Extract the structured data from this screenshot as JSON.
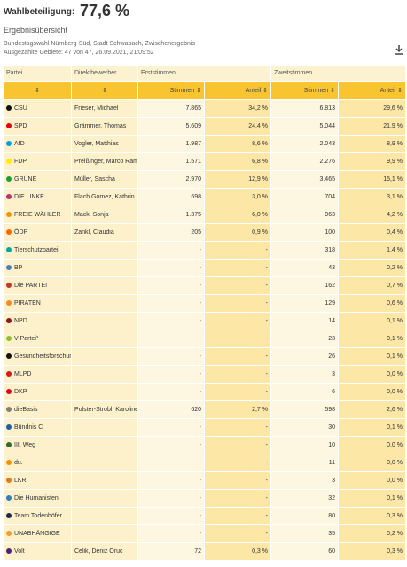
{
  "header": {
    "label": "Wahlbeteiligung:",
    "value": "77,6 %",
    "title": "Ergebnisübersicht",
    "info": [
      "Bundestagswahl Nürnberg-Süd, Stadt Schwabach, Zwischenergebnis",
      "Ausgezählte Gebiete: 47 von 47, 26.09.2021, 21:09:52"
    ]
  },
  "table": {
    "columns": [
      "Partei",
      "Direktbewerber",
      "Erststimmen",
      "Zweitstimmen"
    ],
    "subcolumns": [
      "Stimmen",
      "Anteil",
      "Stimmen",
      "Anteil"
    ],
    "rows": [
      {
        "color": "#111111",
        "cells": [
          "CSU",
          "Frieser, Michael",
          "7.865",
          "34,2 %",
          "6.813",
          "29,6 %"
        ]
      },
      {
        "color": "#e3000f",
        "cells": [
          "SPD",
          "Grämmer, Thomas",
          "5.609",
          "24,4 %",
          "5.044",
          "21,9 %"
        ]
      },
      {
        "color": "#009ee0",
        "cells": [
          "AfD",
          "Vogler, Matthias",
          "1.987",
          "8,6 %",
          "2.043",
          "8,9 %"
        ]
      },
      {
        "color": "#ffed00",
        "cells": [
          "FDP",
          "Preißinger, Marco Ramon",
          "1.571",
          "6,8 %",
          "2.276",
          "9,9 %"
        ]
      },
      {
        "color": "#1aa037",
        "cells": [
          "GRÜNE",
          "Müller, Sascha",
          "2.970",
          "12,9 %",
          "3.465",
          "15,1 %"
        ]
      },
      {
        "color": "#be3075",
        "cells": [
          "DIE LINKE",
          "Flach Gomez, Kathrin",
          "698",
          "3,0 %",
          "704",
          "3,1 %"
        ]
      },
      {
        "color": "#f29400",
        "cells": [
          "FREIE WÄHLER",
          "Mack, Sonja",
          "1.375",
          "6,0 %",
          "963",
          "4,2 %"
        ]
      },
      {
        "color": "#ff6600",
        "cells": [
          "ÖDP",
          "Zankl, Claudia",
          "205",
          "0,9 %",
          "100",
          "0,4 %"
        ]
      },
      {
        "color": "#00a7a7",
        "cells": [
          "Tierschutzpartei",
          null,
          "-",
          "-",
          "318",
          "1,4 %"
        ]
      },
      {
        "color": "#4a7ebb",
        "cells": [
          "BP",
          null,
          "-",
          "-",
          "43",
          "0,2 %"
        ]
      },
      {
        "color": "#c0392b",
        "cells": [
          "Die PARTEI",
          null,
          "-",
          "-",
          "162",
          "0,7 %"
        ]
      },
      {
        "color": "#f28c28",
        "cells": [
          "PIRATEN",
          null,
          "-",
          "-",
          "129",
          "0,6 %"
        ]
      },
      {
        "color": "#8b1a1a",
        "cells": [
          "NPD",
          null,
          "-",
          "-",
          "14",
          "0,1 %"
        ]
      },
      {
        "color": "#8dbf2e",
        "cells": [
          "V-Partei³",
          null,
          "-",
          "-",
          "23",
          "0,1 %"
        ]
      },
      {
        "color": "#111111",
        "cells": [
          "Gesundheitsforschung",
          null,
          "-",
          "-",
          "26",
          "0,1 %"
        ]
      },
      {
        "color": "#d7191c",
        "cells": [
          "MLPD",
          null,
          "-",
          "-",
          "3",
          "0,0 %"
        ]
      },
      {
        "color": "#e2001a",
        "cells": [
          "DKP",
          null,
          "-",
          "-",
          "6",
          "0,0 %"
        ]
      },
      {
        "color": "#7f7f7f",
        "cells": [
          "dieBasis",
          "Polster-Strobl, Karoline Cornelia",
          "620",
          "2,7 %",
          "598",
          "2,6 %"
        ]
      },
      {
        "color": "#1f5fa8",
        "cells": [
          "Bündnis C",
          null,
          "-",
          "-",
          "30",
          "0,1 %"
        ]
      },
      {
        "color": "#2e6b2e",
        "cells": [
          "III. Weg",
          null,
          "-",
          "-",
          "10",
          "0,0 %"
        ]
      },
      {
        "color": "#f39200",
        "cells": [
          "du.",
          null,
          "-",
          "-",
          "11",
          "0,0 %"
        ]
      },
      {
        "color": "#e07b24",
        "cells": [
          "LKR",
          null,
          "-",
          "-",
          "3",
          "0,0 %"
        ]
      },
      {
        "color": "#2f7fc1",
        "cells": [
          "Die Humanisten",
          null,
          "-",
          "-",
          "32",
          "0,1 %"
        ]
      },
      {
        "color": "#1b2a4a",
        "cells": [
          "Team Todenhöfer",
          null,
          "-",
          "-",
          "80",
          "0,3 %"
        ]
      },
      {
        "color": "#f0a030",
        "cells": [
          "UNABHÄNGIGE",
          null,
          "-",
          "-",
          "35",
          "0,2 %"
        ]
      },
      {
        "color": "#502379",
        "cells": [
          "Volt",
          "Celik, Deniz Oruc",
          "72",
          "0,3 %",
          "60",
          "0,3 %"
        ]
      }
    ]
  }
}
